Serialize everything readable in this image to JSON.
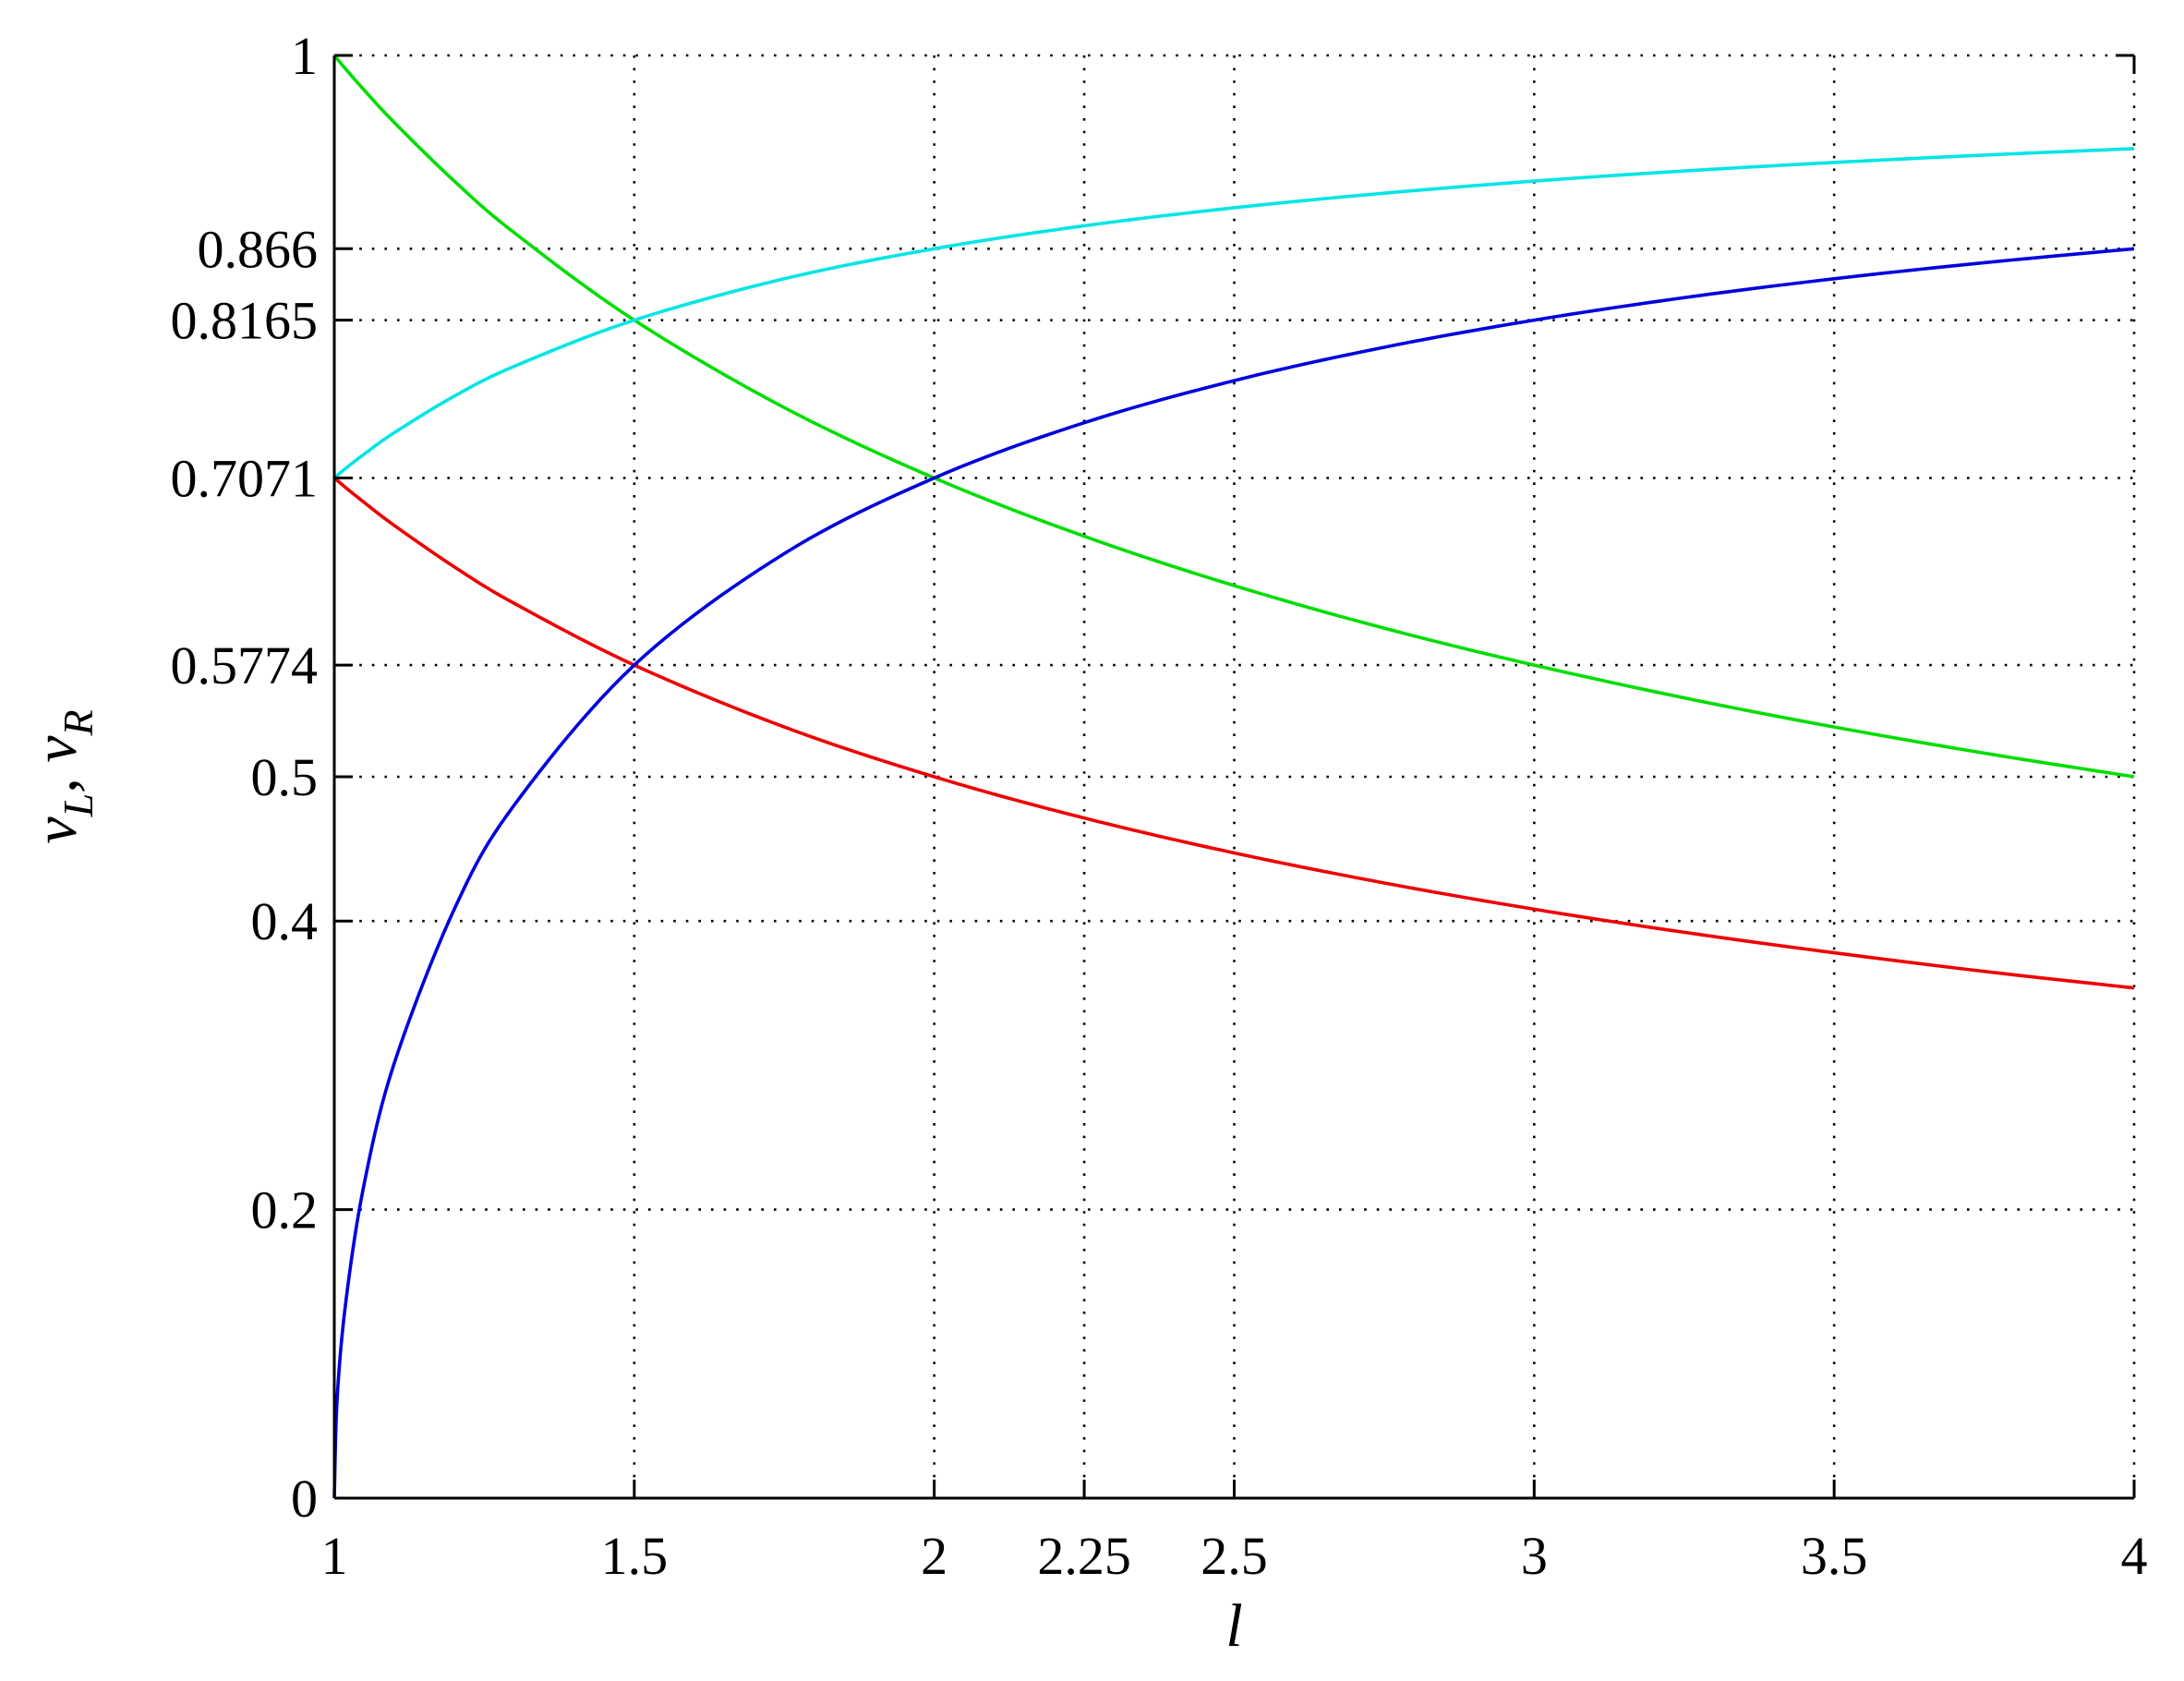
{
  "chart_data": {
    "type": "line",
    "xlabel": "l",
    "ylabel": {
      "v1": "v",
      "sub1": "L",
      "sep": ", ",
      "v2": "v",
      "sub2": "R"
    },
    "xlim": [
      1,
      4
    ],
    "ylim": [
      0,
      1
    ],
    "grid": true,
    "legend": "none",
    "xticks": [
      {
        "value": 1,
        "label": "1"
      },
      {
        "value": 1.5,
        "label": "1.5"
      },
      {
        "value": 2,
        "label": "2"
      },
      {
        "value": 2.25,
        "label": "2.25"
      },
      {
        "value": 2.5,
        "label": "2.5"
      },
      {
        "value": 3,
        "label": "3"
      },
      {
        "value": 3.5,
        "label": "3.5"
      },
      {
        "value": 4,
        "label": "4"
      }
    ],
    "yticks": [
      {
        "value": 0,
        "label": "0"
      },
      {
        "value": 0.2,
        "label": "0.2"
      },
      {
        "value": 0.4,
        "label": "0.4"
      },
      {
        "value": 0.5,
        "label": "0.5"
      },
      {
        "value": 0.5774,
        "label": "0.5774"
      },
      {
        "value": 0.7071,
        "label": "0.7071"
      },
      {
        "value": 0.8165,
        "label": "0.8165"
      },
      {
        "value": 0.866,
        "label": "0.866"
      },
      {
        "value": 1,
        "label": "1"
      }
    ],
    "x": [
      1.0,
      1.005,
      1.02,
      1.05,
      1.1,
      1.2,
      1.3,
      1.5,
      1.75,
      2.0,
      2.25,
      2.5,
      2.75,
      3.0,
      3.25,
      3.5,
      3.75,
      4.0
    ],
    "series": [
      {
        "color": "#00dd00",
        "values": [
          1.0,
          0.9975,
          0.9901,
          0.9759,
          0.9535,
          0.9129,
          0.8771,
          0.8165,
          0.7559,
          0.7071,
          0.6667,
          0.6325,
          0.603,
          0.5774,
          0.5547,
          0.5345,
          0.5164,
          0.5
        ]
      },
      {
        "color": "#00e5e5",
        "values": [
          0.7071,
          0.7089,
          0.7141,
          0.7237,
          0.7385,
          0.7638,
          0.7845,
          0.8165,
          0.8452,
          0.866,
          0.8819,
          0.8944,
          0.9045,
          0.9129,
          0.9199,
          0.9258,
          0.9309,
          0.9354
        ]
      },
      {
        "color": "#ee0000",
        "values": [
          0.7071,
          0.7054,
          0.7001,
          0.6901,
          0.6742,
          0.6455,
          0.6202,
          0.5774,
          0.5345,
          0.5,
          0.4714,
          0.4472,
          0.4264,
          0.4082,
          0.3922,
          0.378,
          0.3651,
          0.3536
        ]
      },
      {
        "color": "#0000dd",
        "values": [
          0.0,
          0.0705,
          0.1386,
          0.2182,
          0.3015,
          0.4082,
          0.4804,
          0.5774,
          0.6547,
          0.7071,
          0.7454,
          0.7746,
          0.7977,
          0.8165,
          0.8321,
          0.8452,
          0.8563,
          0.866
        ]
      }
    ]
  }
}
